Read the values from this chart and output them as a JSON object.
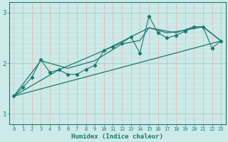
{
  "xlabel": "Humidex (Indice chaleur)",
  "background_color": "#cceae8",
  "grid_color_h": "#aad4d0",
  "grid_color_v": "#e8b8b8",
  "line_color": "#1a7a6e",
  "xlim": [
    -0.5,
    23.5
  ],
  "ylim": [
    0.8,
    3.2
  ],
  "yticks": [
    1,
    2,
    3
  ],
  "xticks": [
    0,
    1,
    2,
    3,
    4,
    5,
    6,
    7,
    8,
    9,
    10,
    11,
    12,
    13,
    14,
    15,
    16,
    17,
    18,
    19,
    20,
    21,
    22,
    23
  ],
  "series1_x": [
    0,
    1,
    2,
    3,
    4,
    5,
    6,
    7,
    8,
    9,
    10,
    11,
    12,
    13,
    14,
    15,
    16,
    17,
    18,
    19,
    20,
    21,
    22,
    23
  ],
  "series1_y": [
    1.35,
    1.52,
    1.72,
    2.07,
    1.82,
    1.87,
    1.78,
    1.78,
    1.88,
    1.96,
    2.25,
    2.33,
    2.4,
    2.52,
    2.2,
    2.93,
    2.6,
    2.5,
    2.55,
    2.63,
    2.72,
    2.72,
    2.3,
    2.44
  ],
  "series2_x": [
    0,
    3,
    6,
    9,
    12,
    14,
    15,
    17,
    19,
    21,
    23
  ],
  "series2_y": [
    1.35,
    2.05,
    1.9,
    2.05,
    2.38,
    2.45,
    2.7,
    2.6,
    2.65,
    2.72,
    2.44
  ],
  "series3_x": [
    0,
    23
  ],
  "series3_y": [
    1.35,
    2.44
  ],
  "series4_x": [
    0,
    5,
    10,
    15,
    18,
    20,
    21,
    23
  ],
  "series4_y": [
    1.35,
    1.87,
    2.25,
    2.7,
    2.6,
    2.72,
    2.72,
    2.44
  ]
}
